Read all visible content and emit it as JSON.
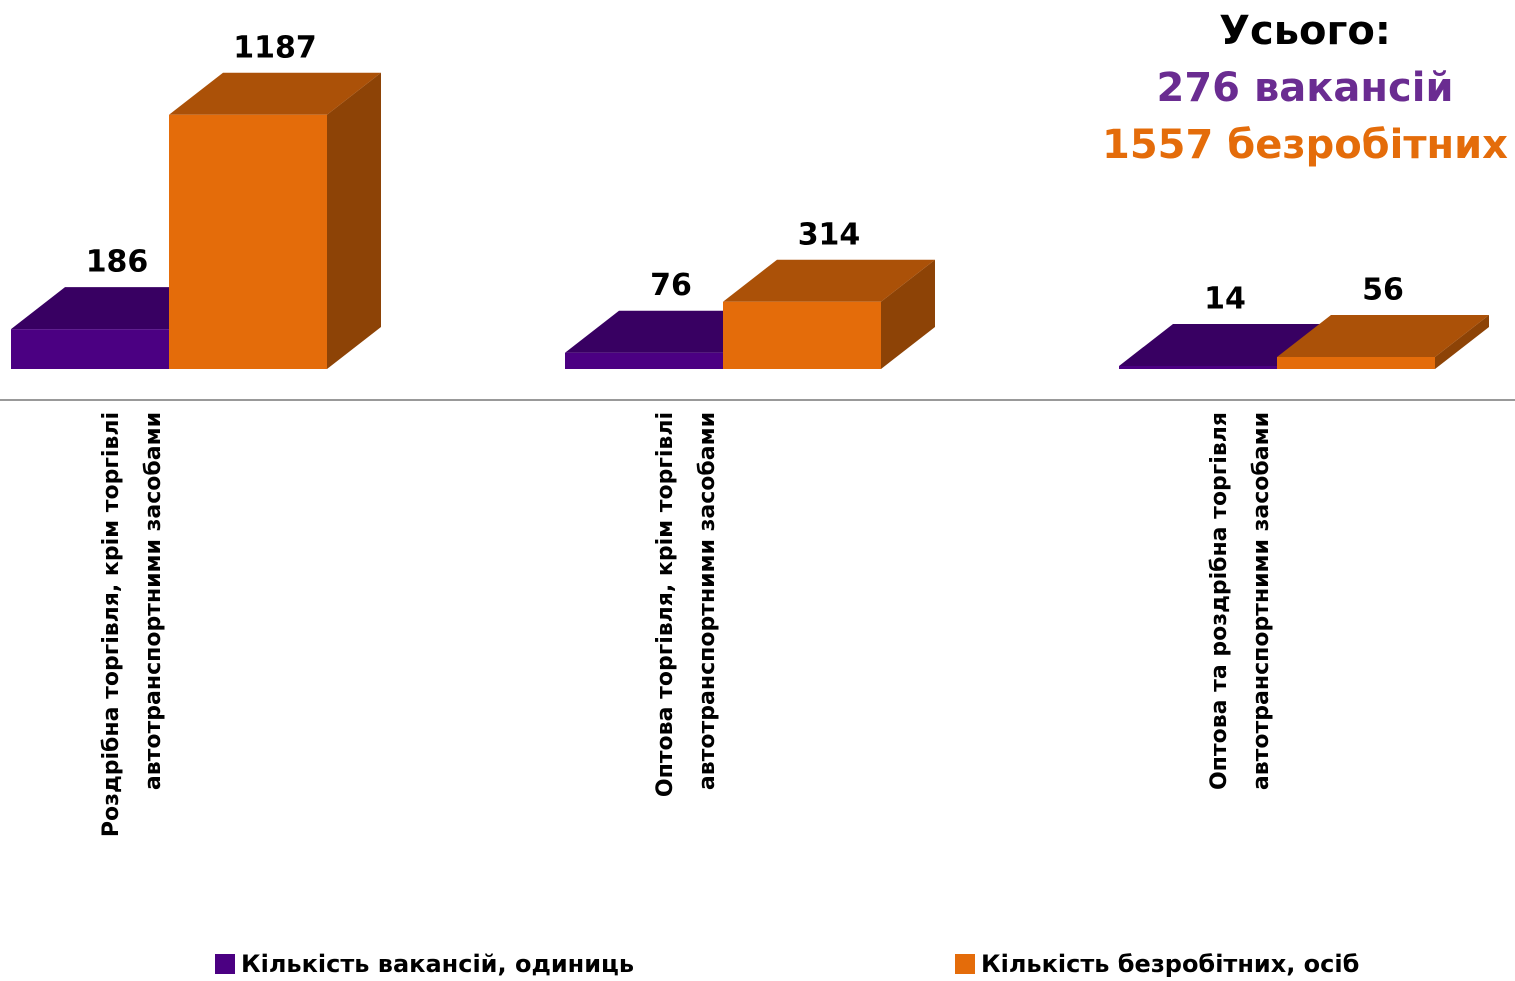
{
  "chart_data": {
    "type": "bar3d",
    "categories": [
      "Роздрібна торгівля, крім торгівлі автотранспортними засобами",
      "Оптова торгівля, крім торгівлі автотранспортними засобами",
      "Оптова та роздрібна торгівля автотранспортними засобами"
    ],
    "series": [
      {
        "name": "Кількість вакансій, одиниць",
        "color": "#4b0082",
        "values": [
          186,
          76,
          14
        ]
      },
      {
        "name": "Кількість безробітних, осіб",
        "color": "#e46c0a",
        "values": [
          1187,
          314,
          56
        ]
      }
    ],
    "ylim": [
      0,
      1200
    ],
    "annotations": [
      {
        "text": "Усього:",
        "color": "#000000"
      },
      {
        "text": "276 вакансій",
        "color": "#6a2c91"
      },
      {
        "text": "1557 безробітних",
        "color": "#e46c0a"
      }
    ]
  }
}
